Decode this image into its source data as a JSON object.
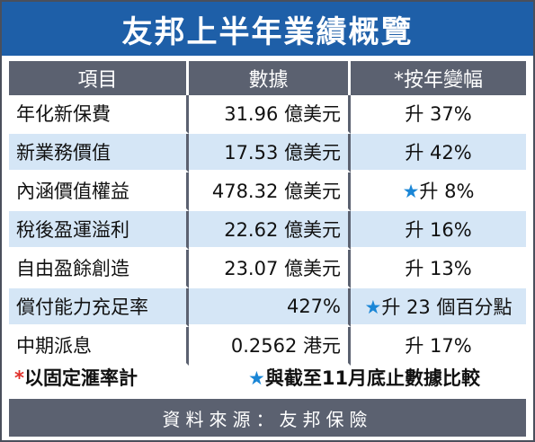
{
  "title": "友邦上半年業績概覽",
  "table": {
    "headers": [
      "項目",
      "數據",
      "*按年變幅"
    ],
    "rows": [
      {
        "item": "年化新保費",
        "value": "31.96 億美元",
        "mark": "",
        "change": "升 37%"
      },
      {
        "item": "新業務價值",
        "value": "17.53 億美元",
        "mark": "",
        "change": "升 42%"
      },
      {
        "item": "內涵價值權益",
        "value": "478.32 億美元",
        "mark": "★",
        "change": "升 8%"
      },
      {
        "item": "稅後盈運溢利",
        "value": "22.62 億美元",
        "mark": "",
        "change": "升 16%"
      },
      {
        "item": "自由盈餘創造",
        "value": "23.07 億美元",
        "mark": "",
        "change": "升 13%"
      },
      {
        "item": "償付能力充足率",
        "value": "427%",
        "mark": "★",
        "change": "升 23 個百分點"
      },
      {
        "item": "中期派息",
        "value": "0.2562 港元",
        "mark": "",
        "change": "升 17%"
      }
    ]
  },
  "notes": {
    "left_symbol": "*",
    "left_text": "以固定滙率計",
    "right_symbol": "★",
    "right_text": "與截至11月底止數據比較"
  },
  "source": "資料來源：友邦保險",
  "colors": {
    "title_bg": "#1e5fa8",
    "header_bg": "#5b6170",
    "stripe": "#d5e6f6",
    "star": "#1a86d6",
    "asterisk": "#e0302a"
  }
}
